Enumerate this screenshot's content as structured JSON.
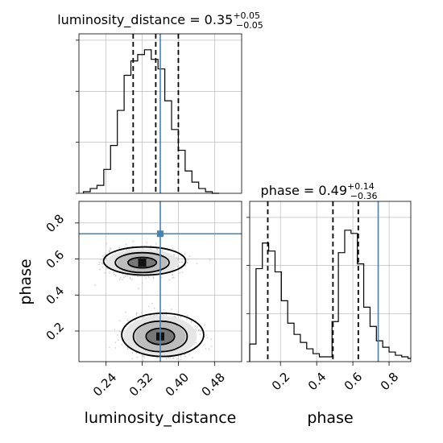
{
  "chart_data": [
    {
      "type": "histogram",
      "panel": "luminosity_distance marginal",
      "title": "luminosity_distance = 0.35",
      "title_sup": "+0.05",
      "title_sub": "−0.05",
      "xlim": [
        0.18,
        0.54
      ],
      "bin_edges": [
        0.19,
        0.205,
        0.22,
        0.235,
        0.25,
        0.265,
        0.28,
        0.295,
        0.31,
        0.325,
        0.34,
        0.355,
        0.37,
        0.385,
        0.4,
        0.415,
        0.43,
        0.445,
        0.46,
        0.475,
        0.49
      ],
      "counts": [
        0.01,
        0.03,
        0.05,
        0.15,
        0.3,
        0.52,
        0.74,
        0.83,
        0.87,
        0.9,
        0.84,
        0.78,
        0.58,
        0.4,
        0.27,
        0.14,
        0.07,
        0.03,
        0.01,
        0.0
      ],
      "quantiles": [
        0.3,
        0.35,
        0.4
      ],
      "truth": 0.36,
      "grid": true
    },
    {
      "type": "scatter",
      "panel": "2D posterior luminosity_distance vs phase",
      "xlabel": "luminosity_distance",
      "ylabel": "phase",
      "xlim": [
        0.18,
        0.54
      ],
      "ylim": [
        0.03,
        0.92
      ],
      "xticks": [
        "0.24",
        "0.32",
        "0.40",
        "0.48"
      ],
      "xtick_values": [
        0.24,
        0.32,
        0.4,
        0.48
      ],
      "yticks": [
        "0.2",
        "0.4",
        "0.6",
        "0.8"
      ],
      "ytick_values": [
        0.2,
        0.4,
        0.6,
        0.8
      ],
      "modes": [
        {
          "x": 0.32,
          "y": 0.58,
          "width": 0.07,
          "height": 0.065
        },
        {
          "x": 0.36,
          "y": 0.17,
          "width": 0.07,
          "height": 0.1
        }
      ],
      "truth": {
        "x": 0.36,
        "y": 0.74
      },
      "grid": true
    },
    {
      "type": "histogram",
      "panel": "phase marginal",
      "title": "phase = 0.49",
      "title_sup": "+0.14",
      "title_sub": "−0.36",
      "xlabel": "phase",
      "xlim": [
        0.03,
        0.92
      ],
      "xticks": [
        "0.2",
        "0.4",
        "0.6",
        "0.8"
      ],
      "xtick_values": [
        0.2,
        0.4,
        0.6,
        0.8
      ],
      "bin_edges": [
        0.03,
        0.065,
        0.1,
        0.135,
        0.17,
        0.205,
        0.24,
        0.275,
        0.31,
        0.345,
        0.38,
        0.415,
        0.45,
        0.485,
        0.52,
        0.555,
        0.59,
        0.625,
        0.66,
        0.695,
        0.73,
        0.765,
        0.8,
        0.835,
        0.87,
        0.905,
        0.92
      ],
      "counts": [
        0.11,
        0.58,
        0.74,
        0.69,
        0.56,
        0.38,
        0.24,
        0.17,
        0.12,
        0.08,
        0.05,
        0.03,
        0.03,
        0.25,
        0.68,
        0.82,
        0.8,
        0.61,
        0.34,
        0.22,
        0.13,
        0.09,
        0.06,
        0.04,
        0.03,
        0.02
      ],
      "quantiles": [
        0.13,
        0.49,
        0.63
      ],
      "truth": 0.74,
      "grid": true
    }
  ],
  "colors": {
    "truth": "#4682b4",
    "hist": "#000000",
    "grid": "#b0b0b0",
    "scatter": "#bdbdbd"
  }
}
